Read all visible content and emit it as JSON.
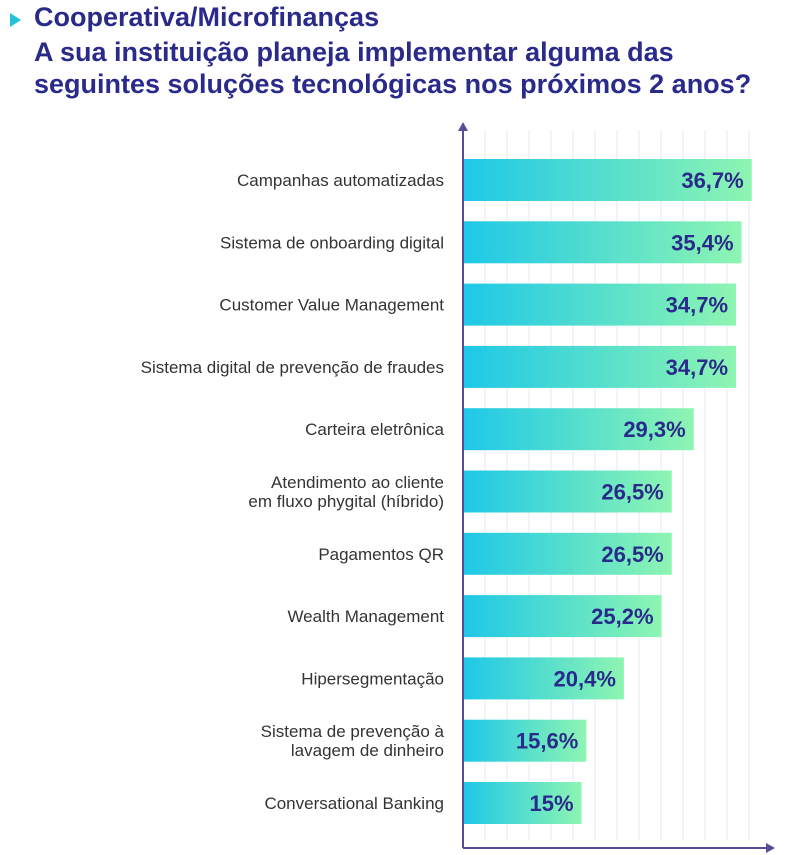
{
  "header": {
    "subtitle": "Cooperativa/Microfinanças",
    "title": "A sua instituição planeja implementar alguma das seguintes soluções tecnológicas nos próximos 2 anos?"
  },
  "colors": {
    "title": "#2a2a8a",
    "bar_start": "#1ec8e8",
    "bar_end": "#8ef5b2",
    "label": "#333333",
    "value_text": "#2a2a8a",
    "axis": "#5a4a9a",
    "grid": "#e8eaf0"
  },
  "chart_data": {
    "type": "bar",
    "orientation": "horizontal",
    "title": "A sua instituição planeja implementar alguma das seguintes soluções tecnológicas nos próximos 2 anos?",
    "subtitle": "Cooperativa/Microfinanças",
    "xlabel": "",
    "ylabel": "",
    "xlim": [
      0,
      40
    ],
    "categories": [
      [
        "Campanhas automatizadas"
      ],
      [
        "Sistema de onboarding digital"
      ],
      [
        "Customer Value Management"
      ],
      [
        "Sistema digital de prevenção de fraudes"
      ],
      [
        "Carteira eletrônica"
      ],
      [
        "Atendimento ao cliente",
        "em fluxo phygital (híbrido)"
      ],
      [
        "Pagamentos QR"
      ],
      [
        "Wealth Management"
      ],
      [
        "Hipersegmentação"
      ],
      [
        "Sistema de prevenção à",
        "lavagem de dinheiro"
      ],
      [
        "Conversational Banking"
      ]
    ],
    "values": [
      36.7,
      35.4,
      34.7,
      34.7,
      29.3,
      26.5,
      26.5,
      25.2,
      20.4,
      15.6,
      15
    ],
    "value_labels": [
      "36,7%",
      "35,4%",
      "34,7%",
      "34,7%",
      "29,3%",
      "26,5%",
      "26,5%",
      "25,2%",
      "20,4%",
      "15,6%",
      "15%"
    ]
  }
}
